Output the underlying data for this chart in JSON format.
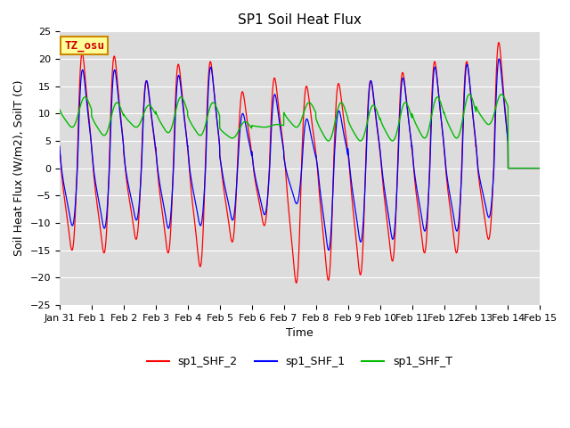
{
  "title": "SP1 Soil Heat Flux",
  "xlabel": "Time",
  "ylabel": "Soil Heat Flux (W/m2), SoilT (C)",
  "ylim": [
    -25,
    25
  ],
  "xtick_labels": [
    "Jan 31",
    "Feb 1",
    "Feb 2",
    "Feb 3",
    "Feb 4",
    "Feb 5",
    "Feb 6",
    "Feb 7",
    "Feb 8",
    "Feb 9",
    "Feb 10",
    "Feb 11",
    "Feb 12",
    "Feb 13",
    "Feb 14",
    "Feb 15"
  ],
  "color_shf2": "#FF0000",
  "color_shf1": "#0000FF",
  "color_shft": "#00BB00",
  "background_color": "#E8E8E8",
  "plot_bg": "#DCDCDC",
  "watermark_text": "TZ_osu",
  "watermark_bg": "#FFFF99",
  "watermark_border": "#CC8800",
  "legend_labels": [
    "sp1_SHF_2",
    "sp1_SHF_1",
    "sp1_SHF_T"
  ],
  "title_fontsize": 11,
  "axis_label_fontsize": 9,
  "tick_fontsize": 8,
  "legend_fontsize": 9,
  "peaks_shf2": [
    21.0,
    20.5,
    16.0,
    19.0,
    19.5,
    14.0,
    16.5,
    15.0,
    15.5,
    16.0,
    17.5,
    19.5,
    19.5,
    23.0
  ],
  "troughs_shf2": [
    -15.0,
    -15.5,
    -13.0,
    -15.5,
    -18.0,
    -13.5,
    -10.5,
    -21.0,
    -20.5,
    -19.5,
    -17.0,
    -15.5,
    -15.5,
    -13.0
  ],
  "peaks_shf1": [
    18.0,
    18.0,
    16.0,
    17.0,
    18.5,
    10.0,
    13.5,
    9.0,
    10.5,
    16.0,
    16.5,
    18.5,
    19.0,
    20.0
  ],
  "troughs_shf1": [
    -10.5,
    -11.0,
    -9.5,
    -11.0,
    -10.5,
    -9.5,
    -8.5,
    -6.5,
    -15.0,
    -13.5,
    -13.0,
    -11.5,
    -11.5,
    -9.0
  ],
  "peaks_shft": [
    13.0,
    12.0,
    11.5,
    13.0,
    12.0,
    8.5,
    8.0,
    12.0,
    12.0,
    11.5,
    12.0,
    13.0,
    13.5,
    13.5
  ],
  "troughs_shft": [
    7.5,
    6.0,
    7.5,
    6.5,
    6.0,
    5.5,
    7.5,
    7.5,
    5.0,
    5.0,
    5.0,
    5.5,
    5.5,
    8.0
  ]
}
